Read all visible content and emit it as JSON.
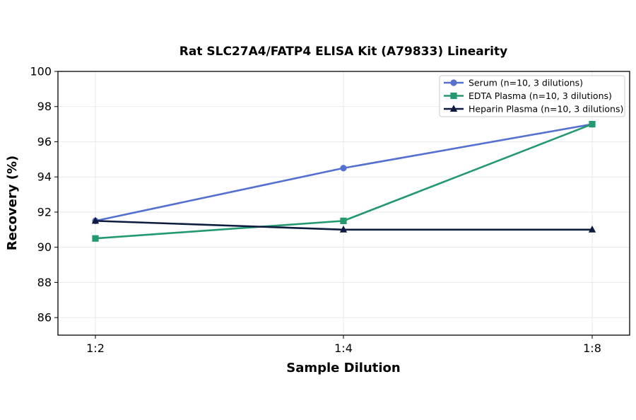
{
  "chart_data": {
    "type": "line",
    "title": "Rat SLC27A4/FATP4 ELISA Kit (A79833) Linearity",
    "xlabel": "Sample Dilution",
    "ylabel": "Recovery (%)",
    "categories": [
      "1:2",
      "1:4",
      "1:8"
    ],
    "ylim": [
      85,
      100
    ],
    "yticks": [
      86,
      88,
      90,
      92,
      94,
      96,
      98,
      100
    ],
    "grid": true,
    "legend_position": "top-right",
    "series": [
      {
        "name": "Serum (n=10, 3 dilutions)",
        "values": [
          91.5,
          94.5,
          97.0
        ],
        "color": "#5470d0",
        "marker": "circle"
      },
      {
        "name": "EDTA Plasma (n=10, 3 dilutions)",
        "values": [
          90.5,
          91.5,
          97.0
        ],
        "color": "#23996e",
        "marker": "square"
      },
      {
        "name": "Heparin Plasma (n=10, 3 dilutions)",
        "values": [
          91.5,
          91.0,
          91.0
        ],
        "color": "#0d1b3e",
        "marker": "triangle"
      }
    ]
  }
}
